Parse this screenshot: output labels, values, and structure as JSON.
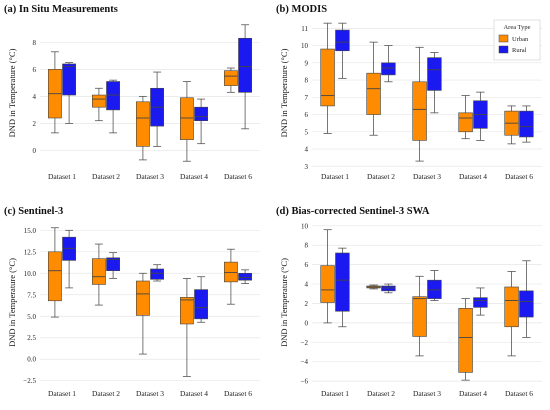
{
  "colors": {
    "urban": "#ff8c00",
    "rural": "#1a1af0",
    "whisker": "#555555",
    "grid": "#e6e6e6"
  },
  "chart_data": [
    {
      "type": "box",
      "title": "(a) In Situ Measurements",
      "ylabel": "DND in Temperature (°C)",
      "ylim": [
        -1.3,
        9.8
      ],
      "yticks": [
        0,
        2,
        4,
        6,
        8
      ],
      "tick_labels": [
        "0",
        "2",
        "4",
        "6",
        "8"
      ],
      "categories": [
        "Dataset 1",
        "Dataset 2",
        "Dataset 3",
        "Dataset 4",
        "Dataset 6"
      ],
      "series": [
        {
          "key": "urban",
          "boxes": [
            {
              "min": 1.3,
              "q1": 2.4,
              "median": 4.2,
              "q3": 6.0,
              "max": 7.3
            },
            {
              "min": 2.2,
              "q1": 3.2,
              "median": 3.8,
              "q3": 4.1,
              "max": 4.6
            },
            {
              "min": -0.7,
              "q1": 0.3,
              "median": 2.4,
              "q3": 3.6,
              "max": 4.0
            },
            {
              "min": -0.8,
              "q1": 0.8,
              "median": 2.4,
              "q3": 3.9,
              "max": 5.1
            },
            {
              "min": 4.3,
              "q1": 4.8,
              "median": 5.5,
              "q3": 5.9,
              "max": 6.1
            }
          ]
        },
        {
          "key": "rural",
          "boxes": [
            {
              "min": 2.0,
              "q1": 4.1,
              "median": 6.2,
              "q3": 6.4,
              "max": 6.5
            },
            {
              "min": 1.3,
              "q1": 3.0,
              "median": 4.1,
              "q3": 5.1,
              "max": 5.2
            },
            {
              "min": 0.3,
              "q1": 1.8,
              "median": 3.2,
              "q3": 4.6,
              "max": 5.8
            },
            {
              "min": 0.5,
              "q1": 2.2,
              "median": 2.5,
              "q3": 3.2,
              "max": 3.8
            },
            {
              "min": 1.6,
              "q1": 4.3,
              "median": 6.2,
              "q3": 8.3,
              "max": 9.3
            }
          ]
        }
      ]
    },
    {
      "type": "box",
      "title": "(b) MODIS",
      "ylabel": "DND in Temperature (°C)",
      "ylim": [
        2.9,
        11.6
      ],
      "yticks": [
        3,
        4,
        5,
        6,
        7,
        8,
        9,
        10,
        11
      ],
      "tick_labels": [
        "3",
        "4",
        "5",
        "6",
        "7",
        "8",
        "9",
        "10",
        "11"
      ],
      "categories": [
        "Dataset 1",
        "Dataset 2",
        "Dataset 3",
        "Dataset 4",
        "Dataset 6"
      ],
      "legend": {
        "title": "Area Type",
        "items": [
          "Urban",
          "Rural"
        ],
        "position": "top-right"
      },
      "series": [
        {
          "key": "urban",
          "boxes": [
            {
              "min": 4.9,
              "q1": 6.5,
              "median": 7.1,
              "q3": 9.8,
              "max": 11.3
            },
            {
              "min": 4.8,
              "q1": 6.0,
              "median": 7.5,
              "q3": 8.4,
              "max": 10.2
            },
            {
              "min": 3.3,
              "q1": 4.5,
              "median": 6.3,
              "q3": 7.9,
              "max": 9.9
            },
            {
              "min": 4.6,
              "q1": 5.0,
              "median": 5.8,
              "q3": 6.1,
              "max": 7.1
            },
            {
              "min": 4.3,
              "q1": 4.8,
              "median": 5.5,
              "q3": 6.2,
              "max": 6.5
            }
          ]
        },
        {
          "key": "rural",
          "boxes": [
            {
              "min": 8.1,
              "q1": 9.7,
              "median": 10.2,
              "q3": 10.9,
              "max": 11.3
            },
            {
              "min": 7.9,
              "q1": 8.3,
              "median": 8.7,
              "q3": 9.0,
              "max": 10.0
            },
            {
              "min": 6.1,
              "q1": 7.4,
              "median": 8.6,
              "q3": 9.3,
              "max": 9.6
            },
            {
              "min": 4.5,
              "q1": 5.2,
              "median": 6.0,
              "q3": 6.8,
              "max": 7.3
            },
            {
              "min": 4.4,
              "q1": 4.7,
              "median": 5.3,
              "q3": 6.2,
              "max": 6.5
            }
          ]
        }
      ]
    },
    {
      "type": "box",
      "title": "(c) Sentinel-3",
      "ylabel": "DND in Temperature (°C)",
      "ylim": [
        -3.0,
        16.2
      ],
      "yticks": [
        -2.5,
        0.0,
        2.5,
        5.0,
        7.5,
        10.0,
        12.5,
        15.0
      ],
      "tick_labels": [
        "−2.5",
        "0.0",
        "2.5",
        "5.0",
        "7.5",
        "10.0",
        "12.5",
        "15.0"
      ],
      "categories": [
        "Dataset 1",
        "Dataset 2",
        "Dataset 3",
        "Dataset 4",
        "Dataset 6"
      ],
      "series": [
        {
          "key": "urban",
          "boxes": [
            {
              "min": 4.9,
              "q1": 6.8,
              "median": 10.3,
              "q3": 12.5,
              "max": 15.3
            },
            {
              "min": 6.3,
              "q1": 8.7,
              "median": 9.6,
              "q3": 11.7,
              "max": 13.4
            },
            {
              "min": 0.6,
              "q1": 5.1,
              "median": 7.6,
              "q3": 9.1,
              "max": 10.0
            },
            {
              "min": -2.0,
              "q1": 4.1,
              "median": 6.9,
              "q3": 7.2,
              "max": 9.4
            },
            {
              "min": 6.4,
              "q1": 9.0,
              "median": 10.1,
              "q3": 11.3,
              "max": 12.8
            }
          ]
        },
        {
          "key": "rural",
          "boxes": [
            {
              "min": 8.3,
              "q1": 11.5,
              "median": 12.9,
              "q3": 14.2,
              "max": 15.0
            },
            {
              "min": 9.4,
              "q1": 10.3,
              "median": 11.6,
              "q3": 11.8,
              "max": 12.4
            },
            {
              "min": 9.1,
              "q1": 9.3,
              "median": 10.0,
              "q3": 10.5,
              "max": 11.0
            },
            {
              "min": 4.3,
              "q1": 4.7,
              "median": 6.0,
              "q3": 8.1,
              "max": 9.6
            },
            {
              "min": 8.8,
              "q1": 9.2,
              "median": 9.5,
              "q3": 10.0,
              "max": 10.4
            }
          ]
        }
      ]
    },
    {
      "type": "box",
      "title": "(d) Bias-corrected Sentinel-3 SWA",
      "ylabel": "DND in Temperature (°C)",
      "ylim": [
        -6.4,
        10.6
      ],
      "yticks": [
        -6,
        -4,
        -2,
        0,
        2,
        4,
        6,
        8,
        10
      ],
      "tick_labels": [
        "−6",
        "−4",
        "−2",
        "0",
        "2",
        "4",
        "6",
        "8",
        "10"
      ],
      "categories": [
        "Dataset 1",
        "Dataset 2",
        "Dataset 3",
        "Dataset 4",
        "Dataset 6"
      ],
      "series": [
        {
          "key": "urban",
          "boxes": [
            {
              "min": 0.0,
              "q1": 2.1,
              "median": 3.4,
              "q3": 5.9,
              "max": 9.6
            },
            {
              "min": 3.5,
              "q1": 3.6,
              "median": 3.7,
              "q3": 3.8,
              "max": 3.9
            },
            {
              "min": -3.4,
              "q1": -1.4,
              "median": 2.5,
              "q3": 2.7,
              "max": 4.8
            },
            {
              "min": -5.9,
              "q1": -5.1,
              "median": -1.5,
              "q3": 1.5,
              "max": 2.5
            },
            {
              "min": -3.4,
              "q1": -0.4,
              "median": 2.3,
              "q3": 3.7,
              "max": 5.3
            }
          ]
        },
        {
          "key": "rural",
          "boxes": [
            {
              "min": -0.4,
              "q1": 1.2,
              "median": 4.4,
              "q3": 7.2,
              "max": 7.7
            },
            {
              "min": 3.1,
              "q1": 3.3,
              "median": 3.6,
              "q3": 3.8,
              "max": 4.0
            },
            {
              "min": 2.3,
              "q1": 2.5,
              "median": 3.4,
              "q3": 4.4,
              "max": 5.4
            },
            {
              "min": 0.8,
              "q1": 1.6,
              "median": 2.3,
              "q3": 2.6,
              "max": 3.6
            },
            {
              "min": -1.5,
              "q1": 0.6,
              "median": 2.2,
              "q3": 3.3,
              "max": 6.4
            }
          ]
        }
      ]
    }
  ]
}
